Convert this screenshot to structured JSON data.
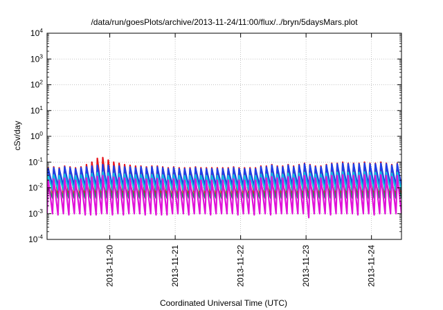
{
  "chart_data": {
    "type": "line",
    "title": "/data/run/goesPlots/archive/2013-11-24/11:00/flux/../bryn/5daysMars.plot",
    "xlabel": "Coordinated Universal Time (UTC)",
    "ylabel": "cSv/day",
    "y_scale": "log",
    "ylim": [
      0.0001,
      10000
    ],
    "xlim": [
      "2013-11-19 01:00",
      "2013-11-24 11:00"
    ],
    "grid": true,
    "legend": "none",
    "x_ticks": [
      "2013-11-20",
      "2013-11-21",
      "2013-11-22",
      "2013-11-23",
      "2013-11-24"
    ],
    "y_ticks": [
      {
        "value": 0.0001,
        "base": "10",
        "exp": "-4"
      },
      {
        "value": 0.001,
        "base": "10",
        "exp": "-3"
      },
      {
        "value": 0.01,
        "base": "10",
        "exp": "-2"
      },
      {
        "value": 0.1,
        "base": "10",
        "exp": "-1"
      },
      {
        "value": 1,
        "base": "10",
        "exp": "0"
      },
      {
        "value": 10,
        "base": "10",
        "exp": "1"
      },
      {
        "value": 100,
        "base": "10",
        "exp": "2"
      },
      {
        "value": 1000,
        "base": "10",
        "exp": "3"
      },
      {
        "value": 10000,
        "base": "10",
        "exp": "4"
      }
    ],
    "cycle_hours": 2,
    "cycle_start": "2013-11-19 01:00",
    "series": [
      {
        "color": "#e8141c",
        "peaks": [
          0.06,
          0.065,
          0.06,
          0.07,
          0.065,
          0.06,
          0.065,
          0.08,
          0.1,
          0.14,
          0.15,
          0.12,
          0.1,
          0.09,
          0.08,
          0.075,
          0.07,
          0.07,
          0.065,
          0.07,
          0.07,
          0.065,
          0.06,
          0.065,
          0.06,
          0.06,
          0.06,
          0.065,
          0.06,
          0.06,
          0.06,
          0.06,
          0.06,
          0.06,
          0.065,
          0.06,
          0.06,
          0.06,
          0.06,
          0.07,
          0.07,
          0.08,
          0.07,
          0.07,
          0.08,
          0.07,
          0.08,
          0.09,
          0.08,
          0.07,
          0.07,
          0.08,
          0.09,
          0.09,
          0.1,
          0.09,
          0.09,
          0.09,
          0.1,
          0.09,
          0.09,
          0.1,
          0.09,
          0.08,
          0.09
        ],
        "troughs": [
          0.006,
          0.005,
          0.006,
          0.005,
          0.006,
          0.006,
          0.005,
          0.005,
          0.005,
          0.006,
          0.006,
          0.005,
          0.006,
          0.005,
          0.006,
          0.006,
          0.006,
          0.005,
          0.006,
          0.005,
          0.005,
          0.005,
          0.006,
          0.006,
          0.006,
          0.005,
          0.006,
          0.006,
          0.006,
          0.005,
          0.006,
          0.006,
          0.006,
          0.006,
          0.005,
          0.006,
          0.006,
          0.005,
          0.006,
          0.006,
          0.005,
          0.006,
          0.006,
          0.006,
          0.006,
          0.006,
          0.006,
          0.005,
          0.006,
          0.006,
          0.006,
          0.005,
          0.006,
          0.006,
          0.006,
          0.006,
          0.005,
          0.006,
          0.006,
          0.005,
          0.006,
          0.006,
          0.006,
          0.006,
          0.006
        ]
      },
      {
        "color": "#1e40e6",
        "peaks": [
          0.055,
          0.06,
          0.055,
          0.065,
          0.06,
          0.055,
          0.06,
          0.065,
          0.07,
          0.075,
          0.08,
          0.075,
          0.07,
          0.07,
          0.065,
          0.065,
          0.06,
          0.065,
          0.06,
          0.065,
          0.065,
          0.06,
          0.055,
          0.06,
          0.055,
          0.055,
          0.055,
          0.06,
          0.055,
          0.055,
          0.055,
          0.055,
          0.055,
          0.055,
          0.06,
          0.055,
          0.055,
          0.055,
          0.055,
          0.065,
          0.065,
          0.075,
          0.065,
          0.065,
          0.075,
          0.065,
          0.075,
          0.085,
          0.075,
          0.065,
          0.065,
          0.075,
          0.085,
          0.085,
          0.09,
          0.085,
          0.085,
          0.085,
          0.09,
          0.085,
          0.085,
          0.09,
          0.085,
          0.075,
          0.085
        ],
        "troughs": [
          0.012,
          0.011,
          0.012,
          0.011,
          0.012,
          0.012,
          0.011,
          0.011,
          0.011,
          0.012,
          0.012,
          0.011,
          0.012,
          0.011,
          0.012,
          0.012,
          0.012,
          0.011,
          0.012,
          0.011,
          0.011,
          0.011,
          0.012,
          0.012,
          0.012,
          0.011,
          0.012,
          0.012,
          0.012,
          0.011,
          0.012,
          0.012,
          0.012,
          0.012,
          0.011,
          0.012,
          0.012,
          0.011,
          0.012,
          0.012,
          0.011,
          0.012,
          0.012,
          0.012,
          0.012,
          0.012,
          0.012,
          0.011,
          0.012,
          0.012,
          0.012,
          0.011,
          0.012,
          0.012,
          0.012,
          0.012,
          0.011,
          0.012,
          0.012,
          0.011,
          0.012,
          0.012,
          0.012,
          0.012,
          0.012
        ]
      },
      {
        "color": "#12c0e0",
        "peaks": [
          0.03,
          0.032,
          0.03,
          0.034,
          0.032,
          0.03,
          0.032,
          0.034,
          0.036,
          0.038,
          0.04,
          0.038,
          0.036,
          0.035,
          0.034,
          0.033,
          0.032,
          0.033,
          0.032,
          0.033,
          0.033,
          0.032,
          0.03,
          0.032,
          0.03,
          0.03,
          0.03,
          0.032,
          0.03,
          0.03,
          0.03,
          0.03,
          0.03,
          0.03,
          0.032,
          0.03,
          0.03,
          0.03,
          0.03,
          0.034,
          0.034,
          0.037,
          0.034,
          0.034,
          0.037,
          0.034,
          0.037,
          0.04,
          0.037,
          0.034,
          0.034,
          0.037,
          0.04,
          0.04,
          0.042,
          0.04,
          0.04,
          0.04,
          0.042,
          0.04,
          0.04,
          0.042,
          0.04,
          0.037,
          0.04
        ],
        "troughs": [
          0.008,
          0.008,
          0.008,
          0.008,
          0.008,
          0.008,
          0.008,
          0.008,
          0.008,
          0.008,
          0.008,
          0.008,
          0.008,
          0.008,
          0.008,
          0.008,
          0.008,
          0.008,
          0.008,
          0.008,
          0.008,
          0.008,
          0.008,
          0.008,
          0.008,
          0.008,
          0.008,
          0.008,
          0.008,
          0.008,
          0.008,
          0.008,
          0.008,
          0.008,
          0.008,
          0.008,
          0.008,
          0.008,
          0.008,
          0.008,
          0.008,
          0.008,
          0.008,
          0.008,
          0.008,
          0.008,
          0.008,
          0.008,
          0.008,
          0.008,
          0.008,
          0.008,
          0.008,
          0.008,
          0.008,
          0.008,
          0.008,
          0.008,
          0.008,
          0.008,
          0.008,
          0.008,
          0.008,
          0.008,
          0.008
        ]
      },
      {
        "color": "#1a9060",
        "peaks": [
          0.012,
          0.013,
          0.012,
          0.014,
          0.013,
          0.012,
          0.013,
          0.014,
          0.015,
          0.016,
          0.017,
          0.016,
          0.015,
          0.015,
          0.014,
          0.014,
          0.013,
          0.014,
          0.013,
          0.014,
          0.014,
          0.013,
          0.012,
          0.013,
          0.012,
          0.012,
          0.012,
          0.013,
          0.012,
          0.012,
          0.012,
          0.012,
          0.012,
          0.012,
          0.013,
          0.012,
          0.012,
          0.012,
          0.012,
          0.014,
          0.014,
          0.015,
          0.014,
          0.014,
          0.015,
          0.014,
          0.015,
          0.016,
          0.015,
          0.014,
          0.014,
          0.015,
          0.016,
          0.016,
          0.017,
          0.016,
          0.016,
          0.016,
          0.017,
          0.016,
          0.016,
          0.017,
          0.016,
          0.015,
          0.016
        ],
        "troughs": [
          0.004,
          0.004,
          0.004,
          0.004,
          0.004,
          0.004,
          0.004,
          0.004,
          0.004,
          0.004,
          0.004,
          0.004,
          0.004,
          0.004,
          0.004,
          0.004,
          0.004,
          0.004,
          0.004,
          0.004,
          0.004,
          0.004,
          0.004,
          0.004,
          0.004,
          0.004,
          0.004,
          0.004,
          0.004,
          0.004,
          0.004,
          0.004,
          0.004,
          0.004,
          0.004,
          0.004,
          0.004,
          0.004,
          0.004,
          0.004,
          0.004,
          0.004,
          0.004,
          0.004,
          0.004,
          0.004,
          0.004,
          0.004,
          0.004,
          0.004,
          0.004,
          0.004,
          0.004,
          0.004,
          0.004,
          0.004,
          0.004,
          0.004,
          0.004,
          0.004,
          0.004,
          0.004,
          0.004,
          0.004,
          0.004
        ]
      },
      {
        "color": "#e012d8",
        "peaks": [
          0.02,
          0.022,
          0.02,
          0.024,
          0.022,
          0.02,
          0.022,
          0.024,
          0.026,
          0.028,
          0.03,
          0.028,
          0.026,
          0.025,
          0.024,
          0.023,
          0.022,
          0.023,
          0.022,
          0.023,
          0.023,
          0.022,
          0.02,
          0.022,
          0.02,
          0.02,
          0.02,
          0.022,
          0.02,
          0.02,
          0.02,
          0.02,
          0.02,
          0.02,
          0.022,
          0.02,
          0.02,
          0.02,
          0.02,
          0.024,
          0.024,
          0.027,
          0.024,
          0.024,
          0.027,
          0.024,
          0.027,
          0.03,
          0.027,
          0.024,
          0.024,
          0.027,
          0.03,
          0.03,
          0.032,
          0.03,
          0.03,
          0.03,
          0.032,
          0.03,
          0.03,
          0.032,
          0.03,
          0.027,
          0.03
        ],
        "troughs": [
          0.001,
          0.0009,
          0.001,
          0.0009,
          0.001,
          0.001,
          0.0009,
          0.0009,
          0.0009,
          0.001,
          0.001,
          0.0009,
          0.001,
          0.0009,
          0.001,
          0.001,
          0.001,
          0.0009,
          0.001,
          0.0009,
          0.0009,
          0.0009,
          0.001,
          0.001,
          0.001,
          0.0009,
          0.001,
          0.001,
          0.001,
          0.0009,
          0.001,
          0.001,
          0.001,
          0.001,
          0.0009,
          0.001,
          0.001,
          0.0009,
          0.001,
          0.001,
          0.0009,
          0.001,
          0.001,
          0.001,
          0.001,
          0.001,
          0.001,
          0.0007,
          0.001,
          0.001,
          0.001,
          0.0009,
          0.001,
          0.001,
          0.001,
          0.001,
          0.0009,
          0.001,
          0.001,
          0.0009,
          0.001,
          0.001,
          0.001,
          0.001,
          0.001
        ]
      }
    ]
  }
}
